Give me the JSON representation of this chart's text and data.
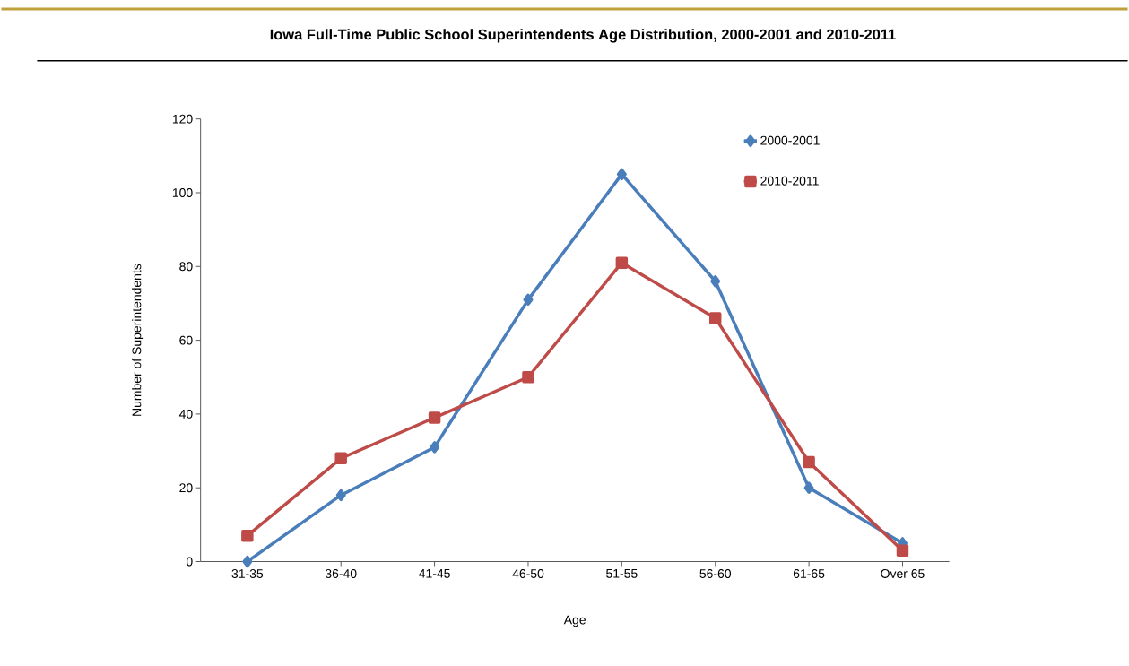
{
  "chart_data": {
    "type": "line",
    "title": "Iowa Full-Time Public School Superintendents Age Distribution, 2000-2001 and 2010-2011",
    "xlabel": "Age",
    "ylabel": "Number of Superintendents",
    "categories": [
      "31-35",
      "36-40",
      "41-45",
      "46-50",
      "51-55",
      "56-60",
      "61-65",
      "Over 65"
    ],
    "series": [
      {
        "name": "2000-2001",
        "color": "#4a7ebb",
        "marker": "diamond",
        "values": [
          0,
          18,
          31,
          71,
          105,
          76,
          20,
          5
        ]
      },
      {
        "name": "2010-2011",
        "color": "#be4b48",
        "marker": "square",
        "values": [
          7,
          28,
          39,
          50,
          81,
          66,
          27,
          3
        ]
      }
    ],
    "ylim": [
      0,
      120
    ],
    "yticks": [
      0,
      20,
      40,
      60,
      80,
      100,
      120
    ],
    "grid": false,
    "legend": "top right",
    "line_style": "solid"
  }
}
